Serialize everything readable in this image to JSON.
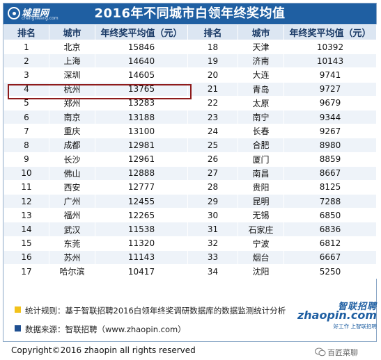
{
  "header": {
    "logo_text": "城里网",
    "logo_sub": "chengliwang.com",
    "title": "2016年不同城市白领年终奖均值"
  },
  "table": {
    "columns": [
      "排名",
      "城市",
      "年终奖平均值（元）",
      "排名",
      "城市",
      "年终奖平均值（元）"
    ],
    "rows": [
      [
        "1",
        "北京",
        "15846",
        "18",
        "天津",
        "10392"
      ],
      [
        "2",
        "上海",
        "14640",
        "19",
        "济南",
        "10143"
      ],
      [
        "3",
        "深圳",
        "14605",
        "20",
        "大连",
        "9741"
      ],
      [
        "4",
        "杭州",
        "13765",
        "21",
        "青岛",
        "9727"
      ],
      [
        "5",
        "郑州",
        "13283",
        "22",
        "太原",
        "9679"
      ],
      [
        "6",
        "南京",
        "13188",
        "23",
        "南宁",
        "9344"
      ],
      [
        "7",
        "重庆",
        "13100",
        "24",
        "长春",
        "9267"
      ],
      [
        "8",
        "成都",
        "12981",
        "25",
        "合肥",
        "8980"
      ],
      [
        "9",
        "长沙",
        "12961",
        "26",
        "厦门",
        "8859"
      ],
      [
        "10",
        "佛山",
        "12888",
        "27",
        "南昌",
        "8667"
      ],
      [
        "11",
        "西安",
        "12777",
        "28",
        "贵阳",
        "8125"
      ],
      [
        "12",
        "广州",
        "12455",
        "29",
        "昆明",
        "7288"
      ],
      [
        "13",
        "福州",
        "12265",
        "30",
        "无锡",
        "6850"
      ],
      [
        "14",
        "武汉",
        "11538",
        "31",
        "石家庄",
        "6836"
      ],
      [
        "15",
        "东莞",
        "11320",
        "32",
        "宁波",
        "6812"
      ],
      [
        "16",
        "苏州",
        "11143",
        "33",
        "烟台",
        "6667"
      ],
      [
        "17",
        "哈尔滨",
        "10417",
        "34",
        "沈阳",
        "5250"
      ]
    ],
    "highlighted_rank": "4"
  },
  "footer": {
    "rule": "统计规则：基于智联招聘2016白领年终奖调研数据库的数据监测统计分析",
    "source": "数据来源：智联招聘（www.zhaopin.com）"
  },
  "brand": {
    "name_zh": "智联招聘",
    "name_en": "zhaopin.com",
    "tagline": "好工作 上智联招聘"
  },
  "copyright": "Copyright©2016 zhaopin all rights reserved",
  "watermark": "百匠菜聊",
  "colors": {
    "header_bg": "#1f5fa2",
    "table_header_bg": "#dce6f2",
    "stripe": "#eef3f9",
    "highlight": "#8e1b1b",
    "bullet_yellow": "#f2c21b",
    "bullet_blue": "#1f4f91"
  }
}
